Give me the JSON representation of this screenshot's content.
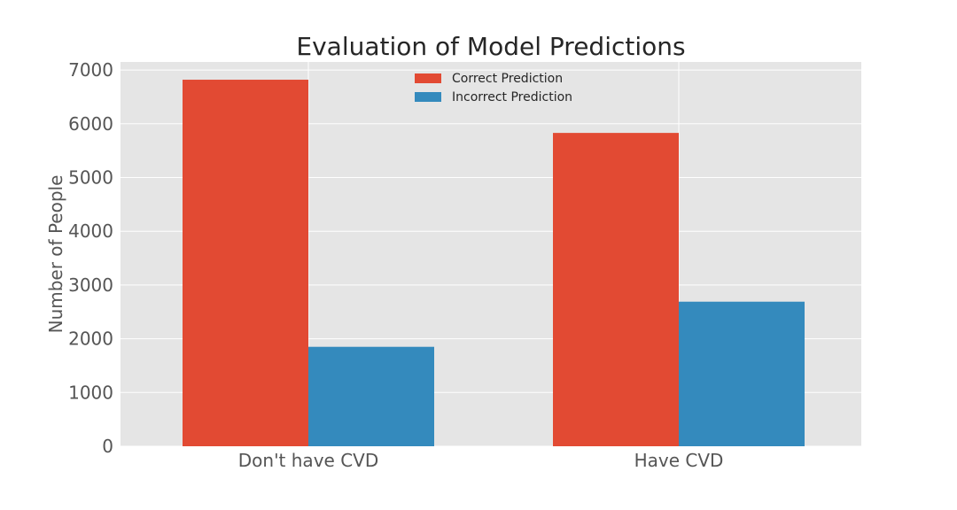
{
  "chart_data": {
    "type": "bar",
    "title": "Evaluation of  Model Predictions",
    "xlabel": "",
    "ylabel": "Number of People",
    "categories": [
      "Don't have CVD",
      "Have CVD"
    ],
    "series": [
      {
        "name": "Correct Prediction",
        "values": [
          6820,
          5830
        ],
        "color": "#e24a33"
      },
      {
        "name": "Incorrect Prediction",
        "values": [
          1850,
          2690
        ],
        "color": "#348abd"
      }
    ],
    "ylim": [
      0,
      7150
    ],
    "yticks": [
      0,
      1000,
      2000,
      3000,
      4000,
      5000,
      6000,
      7000
    ],
    "grid": true,
    "legend_position": "top-center",
    "colors": {
      "plot_background": "#e5e5e5",
      "grid": "#ffffff"
    }
  }
}
